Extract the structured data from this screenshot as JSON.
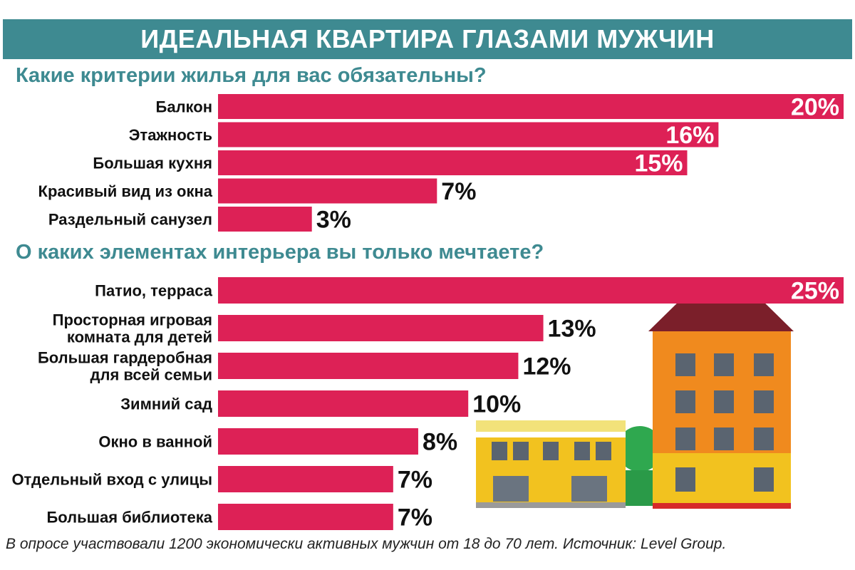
{
  "header": {
    "title": "ИДЕАЛЬНАЯ КВАРТИРА ГЛАЗАМИ МУЖЧИН"
  },
  "colors": {
    "bar": "#dd2156",
    "accent": "#3e8a91",
    "value_on_bar": "#ffffff",
    "value_outside": "#111111"
  },
  "chart_data": [
    {
      "type": "bar",
      "orientation": "horizontal",
      "title": "Какие критерии жилья для вас обязательны?",
      "categories": [
        "Балкон",
        "Этажность",
        "Большая кухня",
        "Красивый вид из окна",
        "Раздельный санузел"
      ],
      "values": [
        20,
        16,
        15,
        7,
        3
      ],
      "value_labels": [
        "20%",
        "16%",
        "15%",
        "7%",
        "3%"
      ],
      "xlim": [
        0,
        20
      ]
    },
    {
      "type": "bar",
      "orientation": "horizontal",
      "title": "О каких элементах интерьера вы только мечтаете?",
      "categories": [
        [
          "Патио, терраса"
        ],
        [
          "Просторная игровая",
          "комната для детей"
        ],
        [
          "Большая гардеробная",
          "для всей семьи"
        ],
        [
          "Зимний сад"
        ],
        [
          "Окно в ванной"
        ],
        [
          "Отдельный вход с улицы"
        ],
        [
          "Большая библиотека"
        ]
      ],
      "values": [
        25,
        13,
        12,
        10,
        8,
        7,
        7
      ],
      "value_labels": [
        "25%",
        "13%",
        "12%",
        "10%",
        "8%",
        "7%",
        "7%"
      ],
      "xlim": [
        0,
        25
      ]
    }
  ],
  "footnote": "В опросе участвовали 1200 экономически активных мужчин от 18 до 70 лет. Источник: Level Group."
}
